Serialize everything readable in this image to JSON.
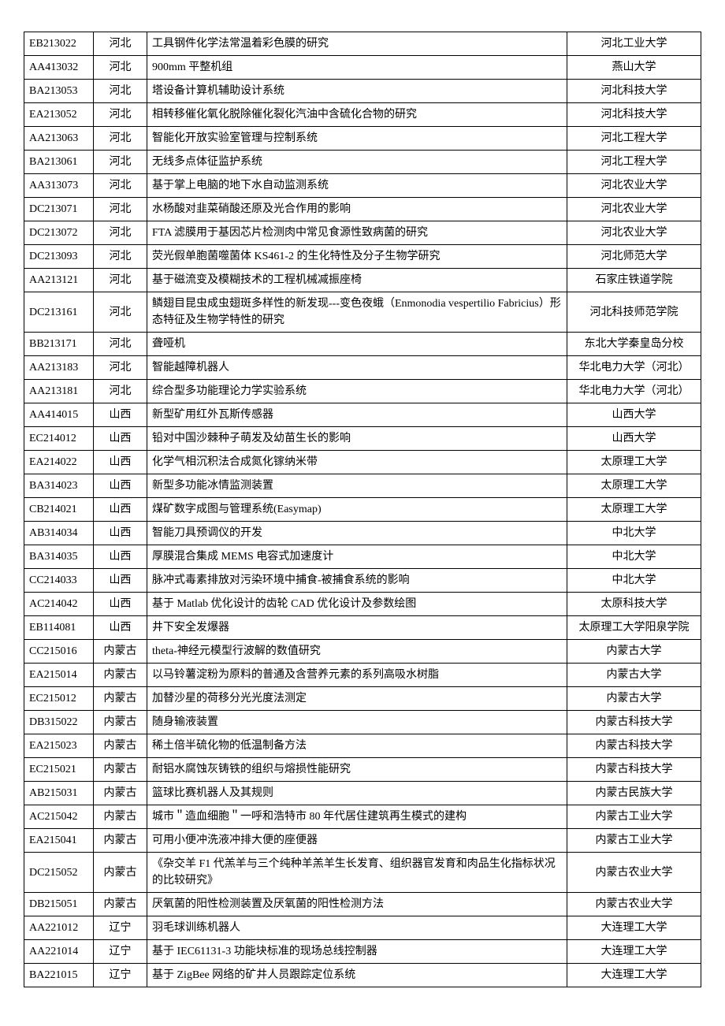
{
  "table": {
    "column_widths": {
      "code": 88,
      "region": 68,
      "institution": 170
    },
    "border_color": "#000000",
    "background_color": "#ffffff",
    "font_size": 14,
    "rows": [
      {
        "code": "EB213022",
        "region": "河北",
        "title": "工具钢件化学法常温着彩色膜的研究",
        "institution": "河北工业大学"
      },
      {
        "code": "AA413032",
        "region": "河北",
        "title": "900mm 平整机组",
        "institution": "燕山大学"
      },
      {
        "code": "BA213053",
        "region": "河北",
        "title": "塔设备计算机辅助设计系统",
        "institution": "河北科技大学"
      },
      {
        "code": "EA213052",
        "region": "河北",
        "title": "相转移催化氧化脱除催化裂化汽油中含硫化合物的研究",
        "institution": "河北科技大学"
      },
      {
        "code": "AA213063",
        "region": "河北",
        "title": "智能化开放实验室管理与控制系统",
        "institution": "河北工程大学"
      },
      {
        "code": "BA213061",
        "region": "河北",
        "title": "无线多点体征监护系统",
        "institution": "河北工程大学"
      },
      {
        "code": "AA313073",
        "region": "河北",
        "title": "基于掌上电脑的地下水自动监测系统",
        "institution": "河北农业大学"
      },
      {
        "code": "DC213071",
        "region": "河北",
        "title": "水杨酸对韭菜硝酸还原及光合作用的影响",
        "institution": "河北农业大学"
      },
      {
        "code": "DC213072",
        "region": "河北",
        "title": "FTA 滤膜用于基因芯片检测肉中常见食源性致病菌的研究",
        "institution": "河北农业大学"
      },
      {
        "code": "DC213093",
        "region": "河北",
        "title": "荧光假单胞菌噬菌体 KS461-2 的生化特性及分子生物学研究",
        "institution": "河北师范大学"
      },
      {
        "code": "AA213121",
        "region": "河北",
        "title": "基于磁流变及模糊技术的工程机械减振座椅",
        "institution": "石家庄铁道学院"
      },
      {
        "code": "DC213161",
        "region": "河北",
        "title": "鳞翅目昆虫成虫翅斑多样性的新发现---变色夜蛾（Enmonodia vespertilio Fabricius）形态特征及生物学特性的研究",
        "institution": "河北科技师范学院"
      },
      {
        "code": "BB213171",
        "region": "河北",
        "title": "聋哑机",
        "institution": "东北大学秦皇岛分校"
      },
      {
        "code": "AA213183",
        "region": "河北",
        "title": "智能越障机器人",
        "institution": "华北电力大学（河北）"
      },
      {
        "code": "AA213181",
        "region": "河北",
        "title": "综合型多功能理论力学实验系统",
        "institution": "华北电力大学（河北）"
      },
      {
        "code": "AA414015",
        "region": "山西",
        "title": "新型矿用红外瓦斯传感器",
        "institution": "山西大学"
      },
      {
        "code": "EC214012",
        "region": "山西",
        "title": "铅对中国沙棘种子萌发及幼苗生长的影响",
        "institution": "山西大学"
      },
      {
        "code": "EA214022",
        "region": "山西",
        "title": "化学气相沉积法合成氮化镓纳米带",
        "institution": "太原理工大学"
      },
      {
        "code": "BA314023",
        "region": "山西",
        "title": "新型多功能冰情监测装置",
        "institution": "太原理工大学"
      },
      {
        "code": "CB214021",
        "region": "山西",
        "title": "煤矿数字成图与管理系统(Easymap)",
        "institution": "太原理工大学"
      },
      {
        "code": "AB314034",
        "region": "山西",
        "title": "智能刀具预调仪的开发",
        "institution": "中北大学"
      },
      {
        "code": "BA314035",
        "region": "山西",
        "title": "厚膜混合集成 MEMS 电容式加速度计",
        "institution": "中北大学"
      },
      {
        "code": "CC214033",
        "region": "山西",
        "title": "脉冲式毒素排放对污染环境中捕食-被捕食系统的影响",
        "institution": "中北大学"
      },
      {
        "code": "AC214042",
        "region": "山西",
        "title": "基于 Matlab 优化设计的齿轮 CAD 优化设计及参数绘图",
        "institution": "太原科技大学"
      },
      {
        "code": "EB114081",
        "region": "山西",
        "title": "井下安全发爆器",
        "institution": "太原理工大学阳泉学院"
      },
      {
        "code": "CC215016",
        "region": "内蒙古",
        "title": "theta-神经元模型行波解的数值研究",
        "institution": "内蒙古大学"
      },
      {
        "code": "EA215014",
        "region": "内蒙古",
        "title": "以马铃薯淀粉为原料的普通及含营养元素的系列高吸水树脂",
        "institution": "内蒙古大学"
      },
      {
        "code": "EC215012",
        "region": "内蒙古",
        "title": "加替沙星的荷移分光光度法测定",
        "institution": "内蒙古大学"
      },
      {
        "code": "DB315022",
        "region": "内蒙古",
        "title": "随身输液装置",
        "institution": "内蒙古科技大学"
      },
      {
        "code": "EA215023",
        "region": "内蒙古",
        "title": "稀土倍半硫化物的低温制备方法",
        "institution": "内蒙古科技大学"
      },
      {
        "code": "EC215021",
        "region": "内蒙古",
        "title": "耐铝水腐蚀灰铸铁的组织与熔损性能研究",
        "institution": "内蒙古科技大学"
      },
      {
        "code": "AB215031",
        "region": "内蒙古",
        "title": "篮球比赛机器人及其规则",
        "institution": "内蒙古民族大学"
      },
      {
        "code": "AC215042",
        "region": "内蒙古",
        "title": "城市＂造血细胞＂一呼和浩特市 80 年代居住建筑再生模式的建构",
        "institution": "内蒙古工业大学"
      },
      {
        "code": "EA215041",
        "region": "内蒙古",
        "title": "可用小便冲洗液冲排大便的座便器",
        "institution": "内蒙古工业大学"
      },
      {
        "code": "DC215052",
        "region": "内蒙古",
        "title": "《杂交羊 F1 代羔羊与三个纯种羊羔羊生长发育、组织器官发育和肉品生化指标状况的比较研究》",
        "institution": "内蒙古农业大学"
      },
      {
        "code": "DB215051",
        "region": "内蒙古",
        "title": "厌氧菌的阳性检测装置及厌氧菌的阳性检测方法",
        "institution": "内蒙古农业大学"
      },
      {
        "code": "AA221012",
        "region": "辽宁",
        "title": "羽毛球训练机器人",
        "institution": "大连理工大学"
      },
      {
        "code": "AA221014",
        "region": "辽宁",
        "title": "基于 IEC61131-3 功能块标准的现场总线控制器",
        "institution": "大连理工大学"
      },
      {
        "code": "BA221015",
        "region": "辽宁",
        "title": "基于 ZigBee 网络的矿井人员跟踪定位系统",
        "institution": "大连理工大学"
      }
    ]
  }
}
